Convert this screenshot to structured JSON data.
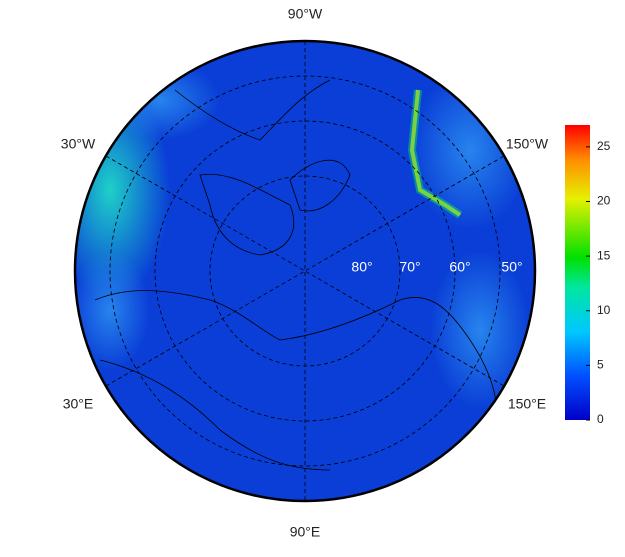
{
  "map": {
    "lon_labels": [
      "90°W",
      "30°W",
      "150°W",
      "30°E",
      "150°E",
      "90°E"
    ],
    "lat_labels": [
      "80°",
      "70°",
      "60°",
      "50°"
    ]
  },
  "colorbar": {
    "lim": [
      0,
      27
    ],
    "ticks": [
      0,
      5,
      10,
      15,
      20,
      25
    ]
  }
}
